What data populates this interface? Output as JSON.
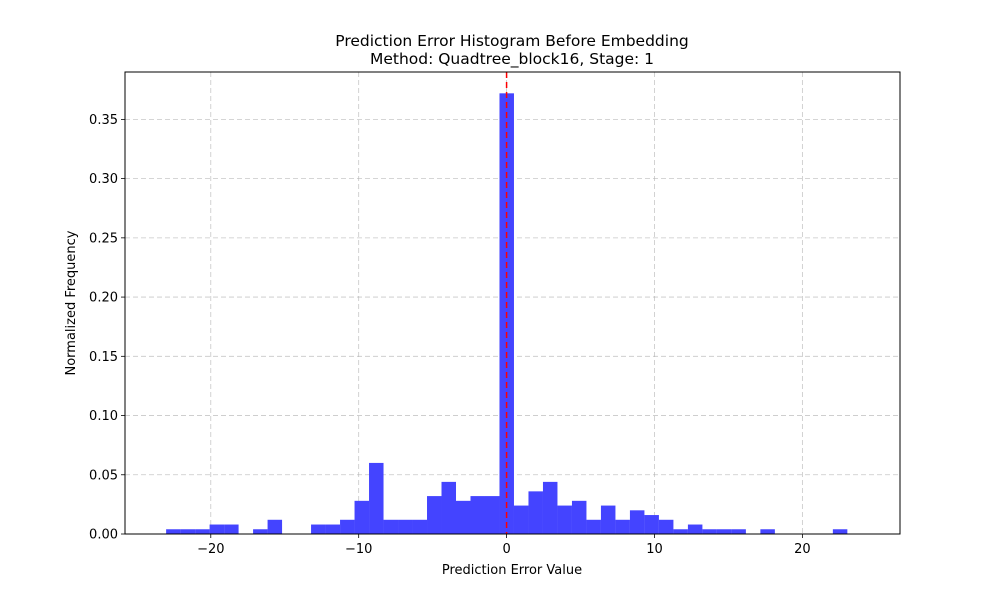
{
  "chart_data": {
    "type": "bar",
    "title_line1": "Prediction Error Histogram Before Embedding",
    "title_line2": "Method: Quadtree_block16, Stage: 1",
    "xlabel": "Prediction Error Value",
    "ylabel": "Normalized Frequency",
    "xlim": [
      -25.8,
      26.6
    ],
    "ylim": [
      0,
      0.39
    ],
    "xticks": [
      -20,
      -10,
      0,
      10,
      20
    ],
    "xtick_labels": [
      "−20",
      "−10",
      "0",
      "10",
      "20"
    ],
    "yticks": [
      0.0,
      0.05,
      0.1,
      0.15,
      0.2,
      0.25,
      0.3,
      0.35
    ],
    "ytick_labels": [
      "0.00",
      "0.05",
      "0.10",
      "0.15",
      "0.20",
      "0.25",
      "0.30",
      "0.35"
    ],
    "grid": true,
    "bar_color": "#4444ff",
    "reference_line": {
      "x": 0,
      "color": "#ff0000",
      "style": "dashed"
    },
    "bins": [
      {
        "x0": -23.02,
        "x1": -22.04,
        "value": 0.004
      },
      {
        "x0": -22.04,
        "x1": -21.06,
        "value": 0.004
      },
      {
        "x0": -21.06,
        "x1": -20.08,
        "value": 0.004
      },
      {
        "x0": -20.08,
        "x1": -19.1,
        "value": 0.008
      },
      {
        "x0": -19.1,
        "x1": -18.12,
        "value": 0.008
      },
      {
        "x0": -18.12,
        "x1": -17.14,
        "value": 0.0
      },
      {
        "x0": -17.14,
        "x1": -16.16,
        "value": 0.004
      },
      {
        "x0": -16.16,
        "x1": -15.18,
        "value": 0.012
      },
      {
        "x0": -15.18,
        "x1": -14.2,
        "value": 0.0
      },
      {
        "x0": -14.2,
        "x1": -13.22,
        "value": 0.0
      },
      {
        "x0": -13.22,
        "x1": -12.24,
        "value": 0.008
      },
      {
        "x0": -12.24,
        "x1": -11.26,
        "value": 0.008
      },
      {
        "x0": -11.26,
        "x1": -10.28,
        "value": 0.012
      },
      {
        "x0": -10.28,
        "x1": -9.3,
        "value": 0.028
      },
      {
        "x0": -9.3,
        "x1": -8.32,
        "value": 0.06
      },
      {
        "x0": -8.32,
        "x1": -7.34,
        "value": 0.012
      },
      {
        "x0": -7.34,
        "x1": -6.36,
        "value": 0.012
      },
      {
        "x0": -6.36,
        "x1": -5.38,
        "value": 0.012
      },
      {
        "x0": -5.38,
        "x1": -4.4,
        "value": 0.032
      },
      {
        "x0": -4.4,
        "x1": -3.42,
        "value": 0.044
      },
      {
        "x0": -3.42,
        "x1": -2.44,
        "value": 0.028
      },
      {
        "x0": -2.44,
        "x1": -1.46,
        "value": 0.032
      },
      {
        "x0": -1.46,
        "x1": -0.48,
        "value": 0.032
      },
      {
        "x0": -0.48,
        "x1": 0.5,
        "value": 0.372
      },
      {
        "x0": 0.5,
        "x1": 1.48,
        "value": 0.024
      },
      {
        "x0": 1.48,
        "x1": 2.46,
        "value": 0.036
      },
      {
        "x0": 2.46,
        "x1": 3.44,
        "value": 0.044
      },
      {
        "x0": 3.44,
        "x1": 4.42,
        "value": 0.024
      },
      {
        "x0": 4.42,
        "x1": 5.4,
        "value": 0.028
      },
      {
        "x0": 5.4,
        "x1": 6.38,
        "value": 0.012
      },
      {
        "x0": 6.38,
        "x1": 7.36,
        "value": 0.024
      },
      {
        "x0": 7.36,
        "x1": 8.34,
        "value": 0.012
      },
      {
        "x0": 8.34,
        "x1": 9.32,
        "value": 0.02
      },
      {
        "x0": 9.32,
        "x1": 10.3,
        "value": 0.016
      },
      {
        "x0": 10.3,
        "x1": 11.28,
        "value": 0.012
      },
      {
        "x0": 11.28,
        "x1": 12.26,
        "value": 0.004
      },
      {
        "x0": 12.26,
        "x1": 13.24,
        "value": 0.008
      },
      {
        "x0": 13.24,
        "x1": 14.22,
        "value": 0.004
      },
      {
        "x0": 14.22,
        "x1": 15.2,
        "value": 0.004
      },
      {
        "x0": 15.2,
        "x1": 16.18,
        "value": 0.004
      },
      {
        "x0": 16.18,
        "x1": 17.16,
        "value": 0.0
      },
      {
        "x0": 17.16,
        "x1": 18.14,
        "value": 0.004
      },
      {
        "x0": 18.14,
        "x1": 19.12,
        "value": 0.0
      },
      {
        "x0": 19.12,
        "x1": 20.1,
        "value": 0.0
      },
      {
        "x0": 20.1,
        "x1": 21.08,
        "value": 0.0
      },
      {
        "x0": 21.08,
        "x1": 22.06,
        "value": 0.0
      },
      {
        "x0": 22.06,
        "x1": 23.04,
        "value": 0.004
      }
    ]
  }
}
